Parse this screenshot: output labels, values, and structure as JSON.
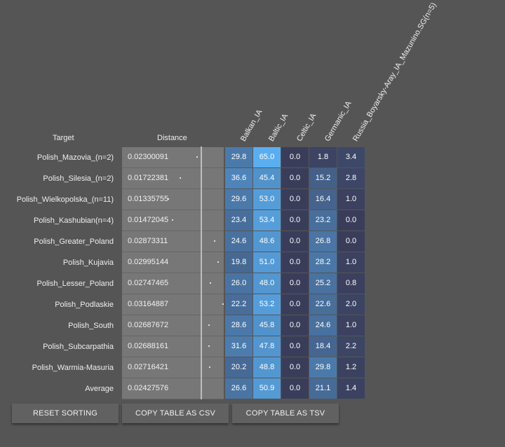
{
  "header": {
    "target": "Target",
    "distance": "Distance",
    "columns": [
      "Balkan_IA",
      "Baltic_IA",
      "Celtic_IA",
      "Germanic_IA",
      "Russia_Boyarsky-Aray_IA_Mazunino.SG(n=5)"
    ]
  },
  "rows": [
    {
      "label": "Polish_Mazovia_(n=2)",
      "distance": "0.02300091",
      "values": [
        "29.8",
        "65.0",
        "0.0",
        "1.8",
        "3.4"
      ]
    },
    {
      "label": "Polish_Silesia_(n=2)",
      "distance": "0.01722381",
      "values": [
        "36.6",
        "45.4",
        "0.0",
        "15.2",
        "2.8"
      ]
    },
    {
      "label": "Polish_Wielkopolska_(n=11)",
      "distance": "0.01335755",
      "values": [
        "29.6",
        "53.0",
        "0.0",
        "16.4",
        "1.0"
      ]
    },
    {
      "label": "Polish_Kashubian(n=4)",
      "distance": "0.01472045",
      "values": [
        "23.4",
        "53.4",
        "0.0",
        "23.2",
        "0.0"
      ]
    },
    {
      "label": "Polish_Greater_Poland",
      "distance": "0.02873311",
      "values": [
        "24.6",
        "48.6",
        "0.0",
        "26.8",
        "0.0"
      ]
    },
    {
      "label": "Polish_Kujavia",
      "distance": "0.02995144",
      "values": [
        "19.8",
        "51.0",
        "0.0",
        "28.2",
        "1.0"
      ]
    },
    {
      "label": "Polish_Lesser_Poland",
      "distance": "0.02747465",
      "values": [
        "26.0",
        "48.0",
        "0.0",
        "25.2",
        "0.8"
      ]
    },
    {
      "label": "Polish_Podlaskie",
      "distance": "0.03164887",
      "values": [
        "22.2",
        "53.2",
        "0.0",
        "22.6",
        "2.0"
      ]
    },
    {
      "label": "Polish_South",
      "distance": "0.02687672",
      "values": [
        "28.6",
        "45.8",
        "0.0",
        "24.6",
        "1.0"
      ]
    },
    {
      "label": "Polish_Subcarpathia",
      "distance": "0.02688161",
      "values": [
        "31.6",
        "47.8",
        "0.0",
        "18.4",
        "2.2"
      ]
    },
    {
      "label": "Polish_Warmia-Masuria",
      "distance": "0.02716421",
      "values": [
        "20.2",
        "48.8",
        "0.0",
        "29.8",
        "1.2"
      ]
    },
    {
      "label": "Average",
      "distance": "0.02427576",
      "values": [
        "26.6",
        "50.9",
        "0.0",
        "21.1",
        "1.4"
      ]
    }
  ],
  "buttons": {
    "reset": "RESET SORTING",
    "csv": "COPY TABLE AS CSV",
    "tsv": "COPY TABLE AS TSV"
  },
  "colors": {
    "background": "#555555",
    "distance_bg": "#777777",
    "cell_low": "#3a3d5a",
    "cell_high": "#5aaef0"
  }
}
